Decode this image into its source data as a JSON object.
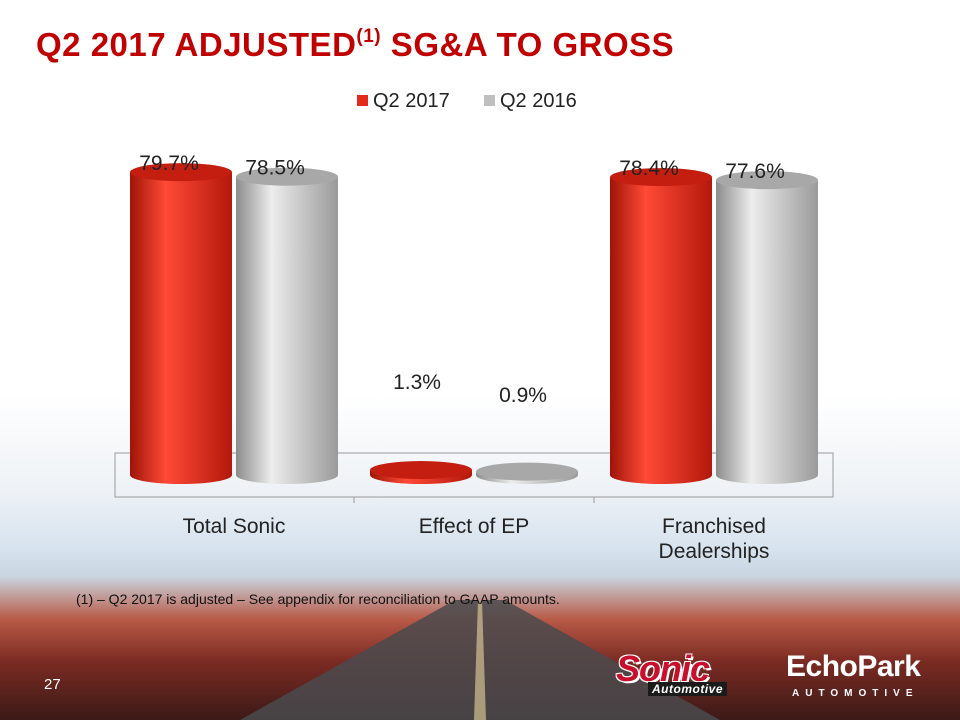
{
  "slide": {
    "title": "Q2 2017 ADJUSTED",
    "title_superscript": "(1)",
    "title_suffix": " SG&A TO GROSS",
    "footnote": "(1) – Q2 2017 is adjusted – See appendix for reconciliation to GAAP amounts.",
    "page_number": "27"
  },
  "logos": {
    "sonic_word": "Sonic",
    "sonic_sub": "Automotive",
    "echopark_word": "EchoPark",
    "echopark_sub": "AUTOMOTIVE"
  },
  "colors": {
    "title": "#c00000",
    "q2_2017": "#e32a1c",
    "q2_2016": "#bfbfbf"
  },
  "chart_data": {
    "type": "bar",
    "title": "",
    "categories": [
      "Total Sonic",
      "Effect of EP",
      "Franchised Dealerships"
    ],
    "series": [
      {
        "name": "Q2 2017",
        "values": [
          79.7,
          1.3,
          78.4
        ],
        "labels": [
          "79.7%",
          "1.3%",
          "78.4%"
        ]
      },
      {
        "name": "Q2 2016",
        "values": [
          78.5,
          0.9,
          77.6
        ],
        "labels": [
          "78.5%",
          "0.9%",
          "77.6%"
        ]
      }
    ],
    "xlabel": "",
    "ylabel": "",
    "ylim": [
      0,
      100
    ],
    "legend": "top"
  }
}
